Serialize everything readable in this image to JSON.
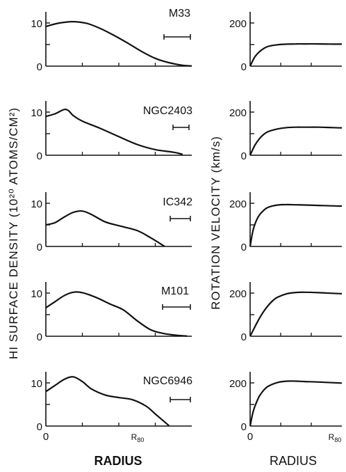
{
  "chart_data": [
    {
      "type": "line",
      "panel": "hi-m33",
      "label": "M33",
      "ylabel": "HI SURFACE DENSITY (10²⁰ ATOMS/CM²)",
      "yticks": [
        "0",
        "10"
      ],
      "ylim": [
        0,
        13
      ],
      "xlim": [
        0,
        1.6
      ],
      "x": [
        0,
        0.15,
        0.3,
        0.45,
        0.6,
        0.75,
        0.9,
        1.05,
        1.2,
        1.35,
        1.5,
        1.6
      ],
      "y": [
        9.2,
        10.0,
        10.3,
        9.9,
        8.7,
        7.1,
        5.3,
        3.4,
        1.8,
        0.8,
        0.2,
        0.05
      ]
    },
    {
      "type": "line",
      "panel": "hi-ngc2403",
      "label": "NGC2403",
      "yticks": [
        "0",
        "10"
      ],
      "ylim": [
        0,
        13
      ],
      "xlim": [
        0,
        1.6
      ],
      "x": [
        0,
        0.1,
        0.2,
        0.25,
        0.3,
        0.4,
        0.6,
        0.8,
        1.0,
        1.2,
        1.4,
        1.5
      ],
      "y": [
        9.0,
        9.6,
        10.6,
        10.3,
        9.2,
        7.9,
        6.2,
        4.3,
        2.5,
        1.3,
        0.7,
        0.2
      ]
    },
    {
      "type": "line",
      "panel": "hi-ic342",
      "label": "IC342",
      "yticks": [
        "0",
        "10"
      ],
      "ylim": [
        0,
        13
      ],
      "xlim": [
        0,
        1.6
      ],
      "x": [
        0,
        0.1,
        0.2,
        0.3,
        0.4,
        0.5,
        0.65,
        0.8,
        1.0,
        1.15,
        1.3
      ],
      "y": [
        5.0,
        5.5,
        6.8,
        7.9,
        8.2,
        7.4,
        5.7,
        4.8,
        3.7,
        2.0,
        0.05
      ]
    },
    {
      "type": "line",
      "panel": "hi-m101",
      "label": "M101",
      "yticks": [
        "0",
        "10"
      ],
      "ylim": [
        0,
        13
      ],
      "xlim": [
        0,
        1.6
      ],
      "x": [
        0,
        0.1,
        0.2,
        0.3,
        0.4,
        0.55,
        0.7,
        0.85,
        1.0,
        1.15,
        1.3,
        1.45,
        1.55
      ],
      "y": [
        6.6,
        8.0,
        9.4,
        10.2,
        10.1,
        9.0,
        7.5,
        6.1,
        3.6,
        1.5,
        0.6,
        0.2,
        0.05
      ]
    },
    {
      "type": "line",
      "panel": "hi-ngc6946",
      "label": "NGC6946",
      "yticks": [
        "0",
        "10"
      ],
      "ylim": [
        0,
        13
      ],
      "xlim": [
        0,
        1.6
      ],
      "x": [
        0,
        0.1,
        0.2,
        0.3,
        0.4,
        0.5,
        0.65,
        0.8,
        0.95,
        1.1,
        1.2,
        1.35
      ],
      "y": [
        8.0,
        9.4,
        10.8,
        11.4,
        10.3,
        8.6,
        7.2,
        6.6,
        6.1,
        4.6,
        2.8,
        0.1
      ],
      "xticks": [
        "0",
        "R80"
      ],
      "xlabel": "RADIUS"
    },
    {
      "type": "line",
      "panel": "rc-m33",
      "ylabel": "ROTATION VELOCITY (km/s)",
      "yticks": [
        "0",
        "200"
      ],
      "ylim": [
        0,
        260
      ],
      "xlim": [
        0,
        1
      ],
      "x": [
        0,
        0.05,
        0.1,
        0.15,
        0.2,
        0.3,
        0.4,
        0.5,
        0.6,
        0.75,
        0.9,
        1.0
      ],
      "y": [
        0,
        42,
        66,
        82,
        92,
        99,
        102,
        103,
        103,
        103,
        102,
        102
      ]
    },
    {
      "type": "line",
      "panel": "rc-ngc2403",
      "yticks": [
        "0",
        "200"
      ],
      "ylim": [
        0,
        260
      ],
      "xlim": [
        0,
        1
      ],
      "x": [
        0,
        0.05,
        0.1,
        0.15,
        0.2,
        0.3,
        0.4,
        0.5,
        0.6,
        0.75,
        0.9,
        1.0
      ],
      "y": [
        0,
        45,
        76,
        97,
        110,
        122,
        128,
        130,
        130,
        130,
        128,
        127
      ]
    },
    {
      "type": "line",
      "panel": "rc-ic342",
      "yticks": [
        "0",
        "200"
      ],
      "ylim": [
        0,
        260
      ],
      "xlim": [
        0,
        1
      ],
      "x": [
        0,
        0.03,
        0.06,
        0.1,
        0.15,
        0.2,
        0.3,
        0.4,
        0.5,
        0.6,
        0.75,
        0.9,
        1.0
      ],
      "y": [
        0,
        72,
        112,
        145,
        168,
        182,
        192,
        194,
        193,
        192,
        190,
        188,
        187
      ]
    },
    {
      "type": "line",
      "panel": "rc-m101",
      "yticks": [
        "0",
        "200"
      ],
      "ylim": [
        0,
        260
      ],
      "xlim": [
        0,
        1
      ],
      "x": [
        0,
        0.05,
        0.1,
        0.15,
        0.2,
        0.25,
        0.3,
        0.4,
        0.5,
        0.6,
        0.75,
        0.9,
        1.0
      ],
      "y": [
        0,
        42,
        82,
        116,
        144,
        166,
        181,
        197,
        203,
        204,
        202,
        199,
        197
      ]
    },
    {
      "type": "line",
      "panel": "rc-ngc6946",
      "yticks": [
        "0",
        "200"
      ],
      "ylim": [
        0,
        260
      ],
      "xlim": [
        0,
        1
      ],
      "x": [
        0,
        0.03,
        0.06,
        0.1,
        0.15,
        0.2,
        0.3,
        0.4,
        0.5,
        0.6,
        0.75,
        0.9,
        1.0
      ],
      "y": [
        0,
        62,
        100,
        138,
        167,
        185,
        202,
        208,
        208,
        206,
        204,
        201,
        199
      ],
      "xticks": [
        "0",
        "R80"
      ],
      "xlabel": "RADIUS"
    }
  ]
}
